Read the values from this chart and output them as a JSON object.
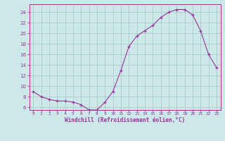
{
  "x": [
    0,
    1,
    2,
    3,
    4,
    5,
    6,
    7,
    8,
    9,
    10,
    11,
    12,
    13,
    14,
    15,
    16,
    17,
    18,
    19,
    20,
    21,
    22,
    23
  ],
  "y": [
    9.0,
    8.0,
    7.5,
    7.2,
    7.2,
    7.0,
    6.5,
    5.5,
    5.5,
    7.0,
    9.0,
    13.0,
    17.5,
    19.5,
    20.5,
    21.5,
    23.0,
    24.0,
    24.5,
    24.5,
    23.5,
    20.5,
    16.0,
    13.5
  ],
  "line_color": "#993399",
  "marker": "+",
  "marker_color": "#993399",
  "bg_color": "#cce8e8",
  "grid_color": "#aacccc",
  "xlabel": "Windchill (Refroidissement éolien,°C)",
  "xlabel_color": "#993399",
  "tick_color": "#993399",
  "spine_color": "#993399",
  "ylim": [
    5.5,
    25.5
  ],
  "yticks": [
    6,
    8,
    10,
    12,
    14,
    16,
    18,
    20,
    22,
    24
  ],
  "xlim": [
    -0.5,
    23.5
  ],
  "xticks": [
    0,
    1,
    2,
    3,
    4,
    5,
    6,
    7,
    8,
    9,
    10,
    11,
    12,
    13,
    14,
    15,
    16,
    17,
    18,
    19,
    20,
    21,
    22,
    23
  ]
}
